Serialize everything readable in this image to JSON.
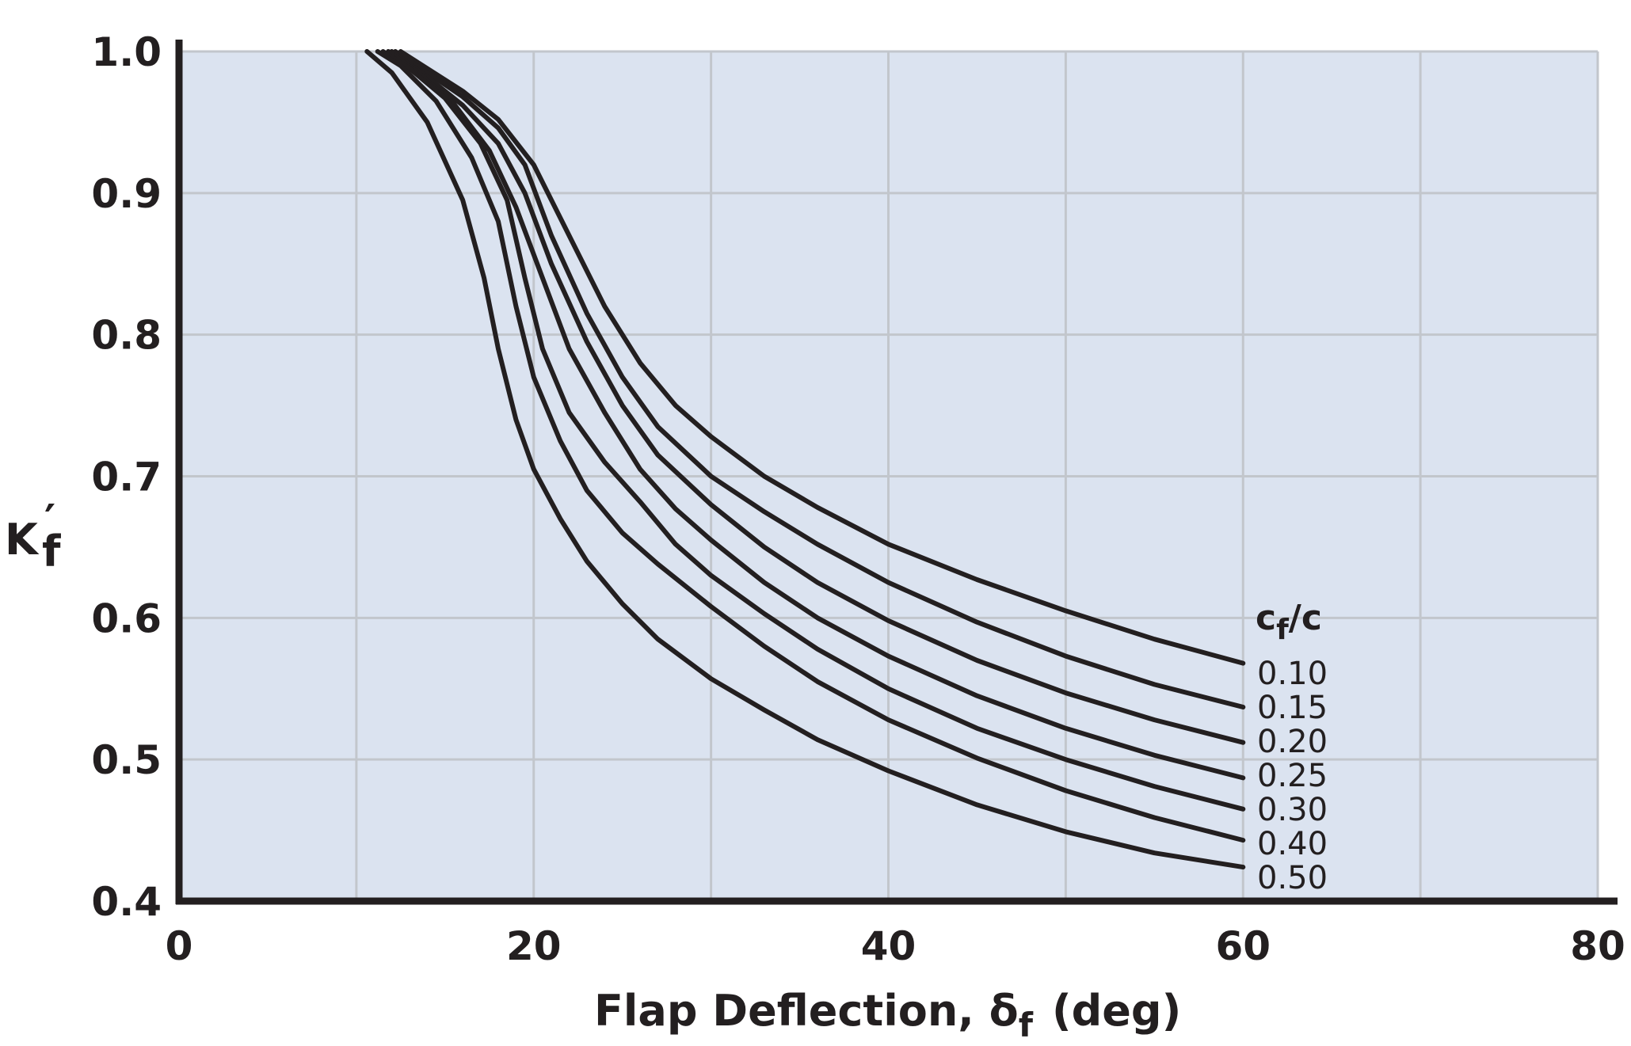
{
  "chart_data": {
    "type": "line",
    "xlabel": "Flap Deflection, δf (deg)",
    "xlabel_main": "Flap Deflection, δ",
    "xlabel_sub": "f",
    "xlabel_unit": "(deg)",
    "ylabel": "K′f",
    "ylabel_main": "K",
    "ylabel_prime": "′",
    "ylabel_sub": "f",
    "xlim": [
      0,
      80
    ],
    "ylim": [
      0.4,
      1.0
    ],
    "x_ticks": [
      0,
      20,
      40,
      60,
      80
    ],
    "x_tick_labels": [
      "0",
      "20",
      "40",
      "60",
      "80"
    ],
    "y_ticks": [
      0.4,
      0.5,
      0.6,
      0.7,
      0.8,
      0.9,
      1.0
    ],
    "y_tick_labels": [
      "0.4",
      "0.5",
      "0.6",
      "0.7",
      "0.8",
      "0.9",
      "1.0"
    ],
    "x_grid": [
      0,
      10,
      20,
      30,
      40,
      50,
      60,
      70,
      80
    ],
    "y_grid": [
      0.4,
      0.5,
      0.6,
      0.7,
      0.8,
      0.9,
      1.0
    ],
    "grid": true,
    "legend_title": "cf/c",
    "legend_title_main": "c",
    "legend_title_sub": "f",
    "legend_title_rest": "/c",
    "legend_placement": "right, at line ends",
    "colors": {
      "plot_bg": "#dbe3f0",
      "grid": "#c2c6cc",
      "line": "#231f20",
      "axis": "#231f20"
    },
    "series": [
      {
        "name": "0.10",
        "points": [
          [
            12.5,
            1.0
          ],
          [
            14,
            0.988
          ],
          [
            16,
            0.972
          ],
          [
            18,
            0.952
          ],
          [
            20,
            0.92
          ],
          [
            22,
            0.87
          ],
          [
            24,
            0.82
          ],
          [
            26,
            0.78
          ],
          [
            28,
            0.75
          ],
          [
            30,
            0.728
          ],
          [
            33,
            0.7
          ],
          [
            36,
            0.678
          ],
          [
            40,
            0.652
          ],
          [
            45,
            0.627
          ],
          [
            50,
            0.605
          ],
          [
            55,
            0.585
          ],
          [
            60,
            0.568
          ]
        ]
      },
      {
        "name": "0.15",
        "points": [
          [
            12.2,
            1.0
          ],
          [
            14,
            0.985
          ],
          [
            16,
            0.968
          ],
          [
            18,
            0.946
          ],
          [
            19.5,
            0.92
          ],
          [
            21,
            0.87
          ],
          [
            23,
            0.815
          ],
          [
            25,
            0.77
          ],
          [
            27,
            0.735
          ],
          [
            30,
            0.7
          ],
          [
            33,
            0.675
          ],
          [
            36,
            0.652
          ],
          [
            40,
            0.625
          ],
          [
            45,
            0.597
          ],
          [
            50,
            0.573
          ],
          [
            55,
            0.553
          ],
          [
            60,
            0.537
          ]
        ]
      },
      {
        "name": "0.20",
        "points": [
          [
            12.0,
            1.0
          ],
          [
            14,
            0.982
          ],
          [
            16,
            0.962
          ],
          [
            18,
            0.935
          ],
          [
            19.5,
            0.9
          ],
          [
            21,
            0.85
          ],
          [
            23,
            0.795
          ],
          [
            25,
            0.75
          ],
          [
            27,
            0.715
          ],
          [
            30,
            0.68
          ],
          [
            33,
            0.65
          ],
          [
            36,
            0.625
          ],
          [
            40,
            0.598
          ],
          [
            45,
            0.57
          ],
          [
            50,
            0.547
          ],
          [
            55,
            0.528
          ],
          [
            60,
            0.512
          ]
        ]
      },
      {
        "name": "0.25",
        "points": [
          [
            11.8,
            1.0
          ],
          [
            13.5,
            0.985
          ],
          [
            15.5,
            0.963
          ],
          [
            17.5,
            0.93
          ],
          [
            19,
            0.89
          ],
          [
            20.5,
            0.84
          ],
          [
            22,
            0.79
          ],
          [
            24,
            0.745
          ],
          [
            26,
            0.705
          ],
          [
            28,
            0.677
          ],
          [
            30,
            0.655
          ],
          [
            33,
            0.625
          ],
          [
            36,
            0.6
          ],
          [
            40,
            0.573
          ],
          [
            45,
            0.545
          ],
          [
            50,
            0.522
          ],
          [
            55,
            0.503
          ],
          [
            60,
            0.487
          ]
        ]
      },
      {
        "name": "0.30",
        "points": [
          [
            11.5,
            1.0
          ],
          [
            13,
            0.988
          ],
          [
            15,
            0.967
          ],
          [
            17,
            0.935
          ],
          [
            18.5,
            0.895
          ],
          [
            19.5,
            0.84
          ],
          [
            20.5,
            0.79
          ],
          [
            22,
            0.745
          ],
          [
            24,
            0.71
          ],
          [
            26,
            0.682
          ],
          [
            28,
            0.652
          ],
          [
            30,
            0.63
          ],
          [
            33,
            0.603
          ],
          [
            36,
            0.578
          ],
          [
            40,
            0.55
          ],
          [
            45,
            0.522
          ],
          [
            50,
            0.5
          ],
          [
            55,
            0.481
          ],
          [
            60,
            0.465
          ]
        ]
      },
      {
        "name": "0.40",
        "points": [
          [
            11.2,
            1.0
          ],
          [
            12.5,
            0.99
          ],
          [
            14.5,
            0.965
          ],
          [
            16.5,
            0.925
          ],
          [
            18,
            0.88
          ],
          [
            19,
            0.82
          ],
          [
            20,
            0.77
          ],
          [
            21.5,
            0.725
          ],
          [
            23,
            0.69
          ],
          [
            25,
            0.66
          ],
          [
            27,
            0.638
          ],
          [
            30,
            0.608
          ],
          [
            33,
            0.58
          ],
          [
            36,
            0.555
          ],
          [
            40,
            0.528
          ],
          [
            45,
            0.501
          ],
          [
            50,
            0.478
          ],
          [
            55,
            0.459
          ],
          [
            60,
            0.443
          ]
        ]
      },
      {
        "name": "0.50",
        "points": [
          [
            10.6,
            1.0
          ],
          [
            12,
            0.985
          ],
          [
            14,
            0.95
          ],
          [
            16,
            0.895
          ],
          [
            17.2,
            0.84
          ],
          [
            18,
            0.79
          ],
          [
            19,
            0.74
          ],
          [
            20,
            0.705
          ],
          [
            21.5,
            0.67
          ],
          [
            23,
            0.64
          ],
          [
            25,
            0.61
          ],
          [
            27,
            0.585
          ],
          [
            30,
            0.557
          ],
          [
            33,
            0.535
          ],
          [
            36,
            0.514
          ],
          [
            40,
            0.492
          ],
          [
            45,
            0.468
          ],
          [
            50,
            0.449
          ],
          [
            55,
            0.434
          ],
          [
            60,
            0.424
          ]
        ]
      }
    ]
  }
}
